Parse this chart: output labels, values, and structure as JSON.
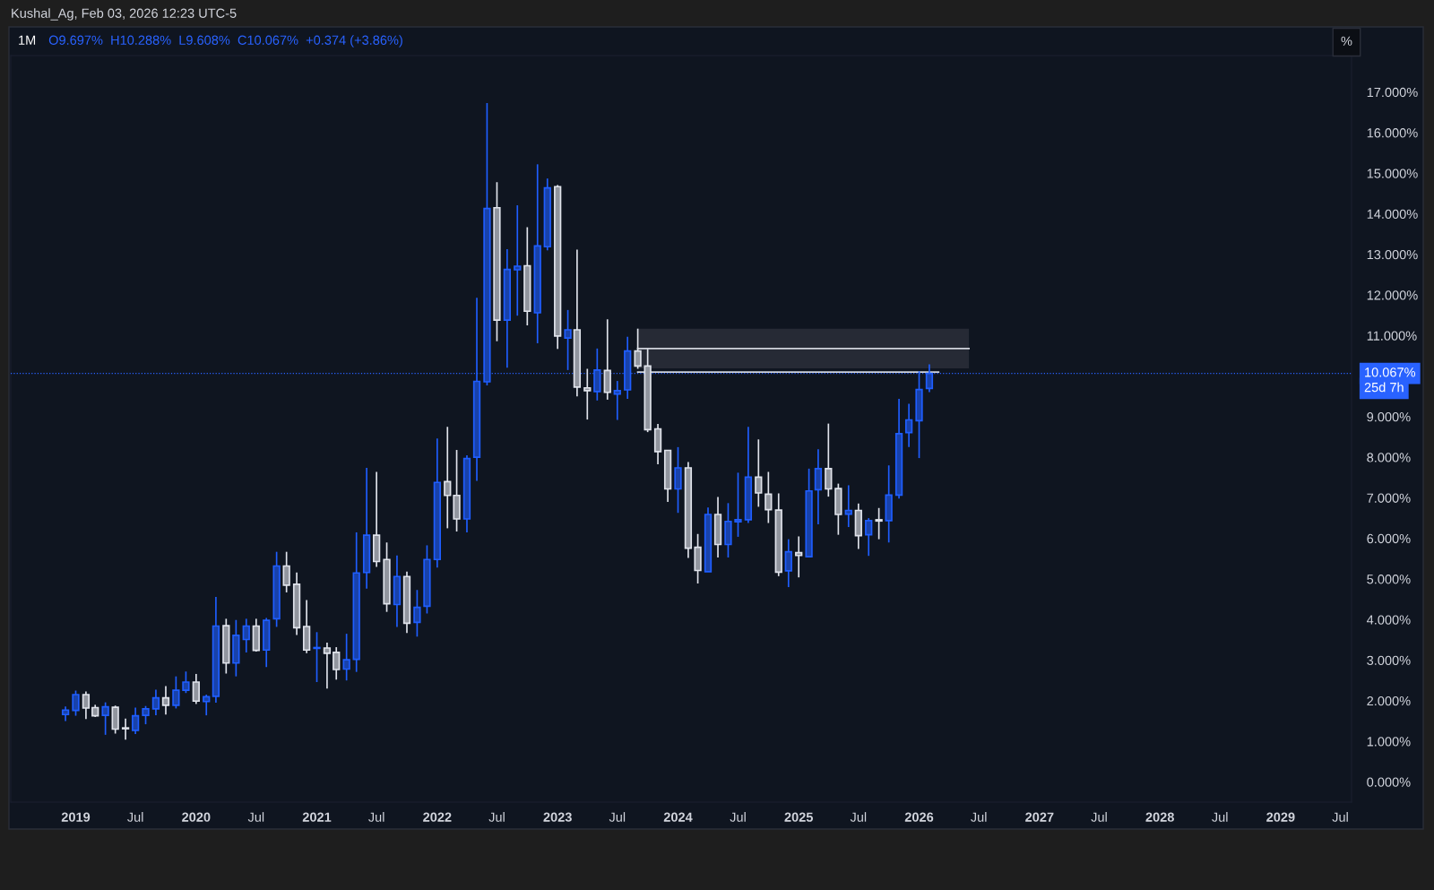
{
  "chart_data": {
    "type": "candlestick",
    "title": "1M",
    "subtitle": "O9.697%  H10.288%  L9.608%  C10.067%  +0.374 (+3.86%)",
    "annotations": [
      "Kushal_Ag, Feb 03, 2026 12:23 UTC-5",
      "%",
      "25d 7h"
    ],
    "x": [
      "2018-12",
      "2019-01",
      "2019-02",
      "2019-03",
      "2019-04",
      "2019-05",
      "2019-06",
      "2019-07",
      "2019-08",
      "2019-09",
      "2019-10",
      "2019-11",
      "2019-12",
      "2020-01",
      "2020-02",
      "2020-03",
      "2020-04",
      "2020-05",
      "2020-06",
      "2020-07",
      "2020-08",
      "2020-09",
      "2020-10",
      "2020-11",
      "2020-12",
      "2021-01",
      "2021-02",
      "2021-03",
      "2021-04",
      "2021-05",
      "2021-06",
      "2021-07",
      "2021-08",
      "2021-09",
      "2021-10",
      "2021-11",
      "2021-12",
      "2022-01",
      "2022-02",
      "2022-03",
      "2022-04",
      "2022-05",
      "2022-06",
      "2022-07",
      "2022-08",
      "2022-09",
      "2022-10",
      "2022-11",
      "2022-12",
      "2023-01",
      "2023-02",
      "2023-03",
      "2023-04",
      "2023-05",
      "2023-06",
      "2023-07",
      "2023-08",
      "2023-09",
      "2023-10",
      "2023-11",
      "2023-12",
      "2024-01",
      "2024-02",
      "2024-03",
      "2024-04",
      "2024-05",
      "2024-06",
      "2024-07",
      "2024-08",
      "2024-09",
      "2024-10",
      "2024-11",
      "2024-12",
      "2025-01",
      "2025-02",
      "2025-03",
      "2025-04",
      "2025-05",
      "2025-06",
      "2025-07",
      "2025-08",
      "2025-09",
      "2025-10",
      "2025-11",
      "2025-12",
      "2026-01",
      "2026-02"
    ],
    "ohlc": [
      [
        1.66,
        1.86,
        1.5,
        1.77
      ],
      [
        1.76,
        2.25,
        1.63,
        2.15
      ],
      [
        2.15,
        2.23,
        1.55,
        1.82
      ],
      [
        1.83,
        1.9,
        1.6,
        1.63
      ],
      [
        1.64,
        1.96,
        1.16,
        1.85
      ],
      [
        1.84,
        1.88,
        1.19,
        1.3
      ],
      [
        1.33,
        1.56,
        1.04,
        1.31
      ],
      [
        1.27,
        1.83,
        1.18,
        1.63
      ],
      [
        1.64,
        1.87,
        1.42,
        1.8
      ],
      [
        1.8,
        2.27,
        1.64,
        2.07
      ],
      [
        2.07,
        2.36,
        1.66,
        1.89
      ],
      [
        1.89,
        2.6,
        1.81,
        2.26
      ],
      [
        2.26,
        2.72,
        2.19,
        2.46
      ],
      [
        2.46,
        2.66,
        1.92,
        1.99
      ],
      [
        1.98,
        2.15,
        1.64,
        2.1
      ],
      [
        2.11,
        4.56,
        1.95,
        3.84
      ],
      [
        3.85,
        4.02,
        2.67,
        2.93
      ],
      [
        2.93,
        3.99,
        2.6,
        3.61
      ],
      [
        3.51,
        4.02,
        3.19,
        3.84
      ],
      [
        3.84,
        4.02,
        3.21,
        3.24
      ],
      [
        3.25,
        4.04,
        2.83,
        3.98
      ],
      [
        4.02,
        5.67,
        3.82,
        5.32
      ],
      [
        5.32,
        5.67,
        4.67,
        4.85
      ],
      [
        4.87,
        5.16,
        3.62,
        3.8
      ],
      [
        3.83,
        4.48,
        3.17,
        3.25
      ],
      [
        3.29,
        3.69,
        2.46,
        3.3
      ],
      [
        3.3,
        3.43,
        2.3,
        3.17
      ],
      [
        3.19,
        3.32,
        2.52,
        2.77
      ],
      [
        2.78,
        3.65,
        2.5,
        3.01
      ],
      [
        3.02,
        6.15,
        2.71,
        5.15
      ],
      [
        5.16,
        7.74,
        4.76,
        6.08
      ],
      [
        6.08,
        7.64,
        5.3,
        5.43
      ],
      [
        5.48,
        5.9,
        4.19,
        4.39
      ],
      [
        4.37,
        5.58,
        3.82,
        5.06
      ],
      [
        5.06,
        5.18,
        3.67,
        3.91
      ],
      [
        3.93,
        4.73,
        3.58,
        4.3
      ],
      [
        4.33,
        5.83,
        4.15,
        5.48
      ],
      [
        5.48,
        8.46,
        5.28,
        7.38
      ],
      [
        7.4,
        8.75,
        6.25,
        7.06
      ],
      [
        7.06,
        8.18,
        6.17,
        6.48
      ],
      [
        6.48,
        8.05,
        6.15,
        7.97
      ],
      [
        8.0,
        11.93,
        7.42,
        9.87
      ],
      [
        9.86,
        16.73,
        9.77,
        14.13
      ],
      [
        14.15,
        14.78,
        10.86,
        11.38
      ],
      [
        11.38,
        13.13,
        10.21,
        12.63
      ],
      [
        12.62,
        14.21,
        11.49,
        12.71
      ],
      [
        12.72,
        13.67,
        11.25,
        11.6
      ],
      [
        11.56,
        15.22,
        10.81,
        13.21
      ],
      [
        13.19,
        14.87,
        13.1,
        14.64
      ],
      [
        14.67,
        14.71,
        10.67,
        10.99
      ],
      [
        10.94,
        11.63,
        10.15,
        11.14
      ],
      [
        11.14,
        13.12,
        9.5,
        9.73
      ],
      [
        9.71,
        10.18,
        8.93,
        9.64
      ],
      [
        9.62,
        10.68,
        9.4,
        10.15
      ],
      [
        10.14,
        11.4,
        9.42,
        9.6
      ],
      [
        9.56,
        9.88,
        8.92,
        9.64
      ],
      [
        9.66,
        10.97,
        9.44,
        10.62
      ],
      [
        10.62,
        11.17,
        10.18,
        10.25
      ],
      [
        10.25,
        10.67,
        8.62,
        8.68
      ],
      [
        8.7,
        8.82,
        7.83,
        8.14
      ],
      [
        8.17,
        8.18,
        6.9,
        7.22
      ],
      [
        7.22,
        8.25,
        6.63,
        7.74
      ],
      [
        7.74,
        7.88,
        5.52,
        5.76
      ],
      [
        5.78,
        6.11,
        4.89,
        5.21
      ],
      [
        5.18,
        6.76,
        5.18,
        6.59
      ],
      [
        6.59,
        7.02,
        5.53,
        5.85
      ],
      [
        5.85,
        6.87,
        5.53,
        6.42
      ],
      [
        6.41,
        7.62,
        6.04,
        6.46
      ],
      [
        6.46,
        8.75,
        6.38,
        7.51
      ],
      [
        7.51,
        8.44,
        6.78,
        7.12
      ],
      [
        7.09,
        7.64,
        6.38,
        6.71
      ],
      [
        6.7,
        7.11,
        5.07,
        5.17
      ],
      [
        5.2,
        5.98,
        4.8,
        5.67
      ],
      [
        5.65,
        6.05,
        5.04,
        5.58
      ],
      [
        5.55,
        7.72,
        5.54,
        7.17
      ],
      [
        7.2,
        8.2,
        6.35,
        7.72
      ],
      [
        7.72,
        8.83,
        7.03,
        7.22
      ],
      [
        7.23,
        7.35,
        6.09,
        6.59
      ],
      [
        6.6,
        7.31,
        6.28,
        6.69
      ],
      [
        6.69,
        6.86,
        5.74,
        6.07
      ],
      [
        6.09,
        6.5,
        5.57,
        6.44
      ],
      [
        6.46,
        6.75,
        5.98,
        6.43
      ],
      [
        6.44,
        7.8,
        5.9,
        7.07
      ],
      [
        7.07,
        9.44,
        6.98,
        8.58
      ],
      [
        8.61,
        9.32,
        8.25,
        8.92
      ],
      [
        8.9,
        10.12,
        7.98,
        9.67
      ],
      [
        9.697,
        10.288,
        9.608,
        10.067
      ]
    ],
    "colors": [
      "#1f5eff",
      "#1f5eff",
      "#e0e3eb",
      "#e0e3eb",
      "#1f5eff",
      "#e0e3eb",
      "#e0e3eb",
      "#1f5eff",
      "#1f5eff",
      "#1f5eff",
      "#e0e3eb",
      "#1f5eff",
      "#1f5eff",
      "#e0e3eb",
      "#1f5eff",
      "#1f5eff",
      "#e0e3eb",
      "#1f5eff",
      "#1f5eff",
      "#e0e3eb",
      "#1f5eff",
      "#1f5eff",
      "#e0e3eb",
      "#e0e3eb",
      "#e0e3eb",
      "#1f5eff",
      "#e0e3eb",
      "#e0e3eb",
      "#1f5eff",
      "#1f5eff",
      "#1f5eff",
      "#e0e3eb",
      "#e0e3eb",
      "#1f5eff",
      "#e0e3eb",
      "#1f5eff",
      "#1f5eff",
      "#1f5eff",
      "#e0e3eb",
      "#e0e3eb",
      "#1f5eff",
      "#1f5eff",
      "#1f5eff",
      "#e0e3eb",
      "#1f5eff",
      "#1f5eff",
      "#e0e3eb",
      "#1f5eff",
      "#1f5eff",
      "#e0e3eb",
      "#1f5eff",
      "#e0e3eb",
      "#e0e3eb",
      "#1f5eff",
      "#e0e3eb",
      "#1f5eff",
      "#1f5eff",
      "#e0e3eb",
      "#e0e3eb",
      "#e0e3eb",
      "#e0e3eb",
      "#1f5eff",
      "#e0e3eb",
      "#e0e3eb",
      "#1f5eff",
      "#e0e3eb",
      "#1f5eff",
      "#1f5eff",
      "#1f5eff",
      "#e0e3eb",
      "#e0e3eb",
      "#e0e3eb",
      "#1f5eff",
      "#e0e3eb",
      "#1f5eff",
      "#1f5eff",
      "#e0e3eb",
      "#e0e3eb",
      "#1f5eff",
      "#e0e3eb",
      "#1f5eff",
      "#e0e3eb",
      "#1f5eff",
      "#1f5eff",
      "#1f5eff",
      "#1f5eff",
      "#1f5eff"
    ],
    "series": [
      {
        "type": "line",
        "color": "#d1d4dc",
        "x": [
          "2023-09",
          "2026-06"
        ],
        "values": [
          10.68,
          10.68
        ]
      },
      {
        "type": "line",
        "color": "#d1d4dc",
        "x": [
          "2023-09",
          "2026-03"
        ],
        "values": [
          10.1,
          10.1
        ]
      }
    ],
    "bands": [
      {
        "axis": "y",
        "from": 10.19,
        "to": 11.17,
        "color": "#262a35"
      }
    ],
    "ref_lines": [
      {
        "axis": "y",
        "value": 10.067,
        "label": "10.067%",
        "color": "#2962ff",
        "line_style": "dotted"
      }
    ],
    "xlim": [
      "2018-06-18",
      "2029-08-04"
    ],
    "xticks": [
      {
        "value": "2019-01",
        "label": "2019"
      },
      {
        "value": "2019-07",
        "label": "Jul"
      },
      {
        "value": "2020-01",
        "label": "2020"
      },
      {
        "value": "2020-07",
        "label": "Jul"
      },
      {
        "value": "2021-01",
        "label": "2021"
      },
      {
        "value": "2021-07",
        "label": "Jul"
      },
      {
        "value": "2022-01",
        "label": "2022"
      },
      {
        "value": "2022-07",
        "label": "Jul"
      },
      {
        "value": "2023-01",
        "label": "2023"
      },
      {
        "value": "2023-07",
        "label": "Jul"
      },
      {
        "value": "2024-01",
        "label": "2024"
      },
      {
        "value": "2024-07",
        "label": "Jul"
      },
      {
        "value": "2025-01",
        "label": "2025"
      },
      {
        "value": "2025-07",
        "label": "Jul"
      },
      {
        "value": "2026-01",
        "label": "2026"
      },
      {
        "value": "2026-07",
        "label": "Jul"
      },
      {
        "value": "2027-01",
        "label": "2027"
      },
      {
        "value": "2027-07",
        "label": "Jul"
      },
      {
        "value": "2028-01",
        "label": "2028"
      },
      {
        "value": "2028-07",
        "label": "Jul"
      },
      {
        "value": "2029-01",
        "label": "2029"
      },
      {
        "value": "2029-07",
        "label": "Jul"
      }
    ],
    "ylim": [
      -0.5,
      17.9
    ],
    "yticks": [
      {
        "value": 0,
        "label": "0.000%"
      },
      {
        "value": 1,
        "label": "1.000%"
      },
      {
        "value": 2,
        "label": "2.000%"
      },
      {
        "value": 3,
        "label": "3.000%"
      },
      {
        "value": 4,
        "label": "4.000%"
      },
      {
        "value": 5,
        "label": "5.000%"
      },
      {
        "value": 6,
        "label": "6.000%"
      },
      {
        "value": 7,
        "label": "7.000%"
      },
      {
        "value": 8,
        "label": "8.000%"
      },
      {
        "value": 9,
        "label": "9.000%"
      },
      {
        "value": 10,
        "label": null
      },
      {
        "value": 11,
        "label": "11.000%"
      },
      {
        "value": 12,
        "label": "12.000%"
      },
      {
        "value": 13,
        "label": "13.000%"
      },
      {
        "value": 14,
        "label": "14.000%"
      },
      {
        "value": 15,
        "label": "15.000%"
      },
      {
        "value": 16,
        "label": "16.000%"
      },
      {
        "value": 17,
        "label": "17.000%"
      }
    ],
    "grid": false
  }
}
